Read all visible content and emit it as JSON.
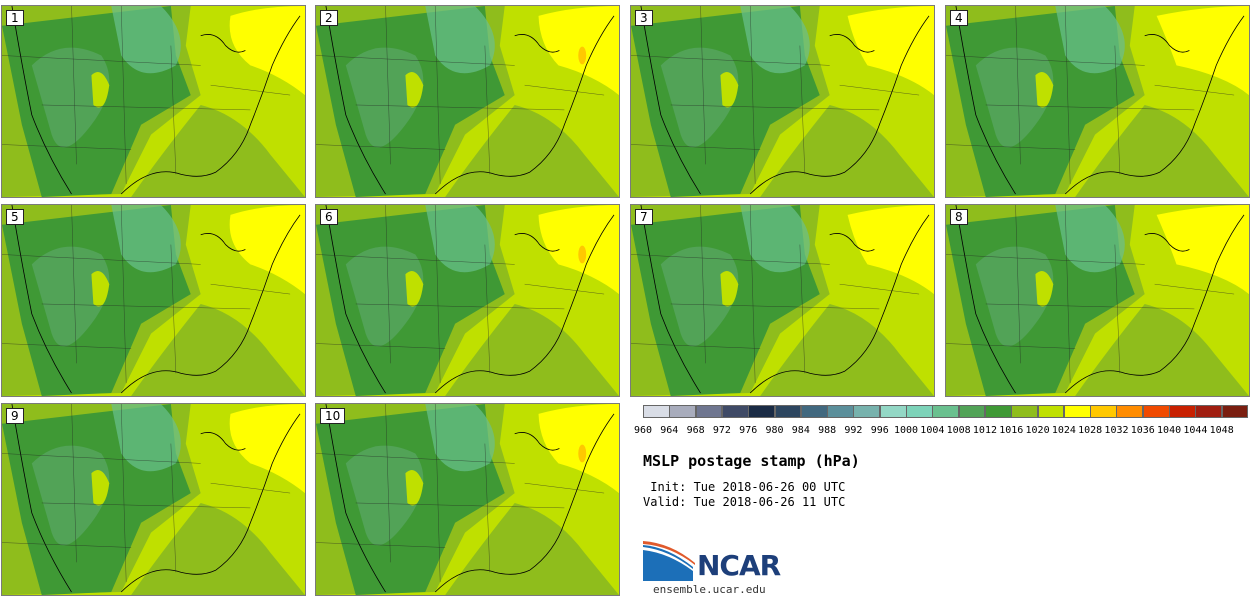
{
  "title": "MSLP postage stamp (hPa)",
  "init": " Init: Tue 2018-06-26 00 UTC",
  "valid": "Valid: Tue 2018-06-26 11 UTC",
  "logo": {
    "name": "NCAR",
    "url": "ensemble.ucar.edu"
  },
  "stamps": [
    {
      "label": "1",
      "variant": 0
    },
    {
      "label": "2",
      "variant": 1
    },
    {
      "label": "3",
      "variant": 2
    },
    {
      "label": "4",
      "variant": 3
    },
    {
      "label": "5",
      "variant": 0
    },
    {
      "label": "6",
      "variant": 1
    },
    {
      "label": "7",
      "variant": 2
    },
    {
      "label": "8",
      "variant": 3
    },
    {
      "label": "9",
      "variant": 0
    },
    {
      "label": "10",
      "variant": 1
    }
  ],
  "colorbar": {
    "ticks": [
      "960",
      "964",
      "968",
      "972",
      "976",
      "980",
      "984",
      "988",
      "992",
      "996",
      "1000",
      "1004",
      "1008",
      "1012",
      "1016",
      "1020",
      "1024",
      "1028",
      "1032",
      "1036",
      "1040",
      "1044",
      "1048"
    ],
    "colors": [
      "#d9dde6",
      "#a8acbc",
      "#6f7690",
      "#3f4a66",
      "#1a2b45",
      "#2d4660",
      "#41687f",
      "#5b8f9b",
      "#77b2ad",
      "#93d7c5",
      "#7dd3b9",
      "#6ac08f",
      "#52a357",
      "#3f9935",
      "#8fbd1c",
      "#bfe000",
      "#ffff00",
      "#ffc800",
      "#ff8c00",
      "#f04a00",
      "#c82000",
      "#a01e10",
      "#7a1e10"
    ]
  },
  "map_colors": {
    "ocean": "#8fbd1c",
    "level_1016": "#8fbd1c",
    "level_1020": "#bfe000",
    "level_1012": "#3f9935",
    "level_1008": "#52a357",
    "level_1004": "#6ac08f",
    "level_1024": "#ffff00",
    "level_1028": "#ffc800"
  }
}
